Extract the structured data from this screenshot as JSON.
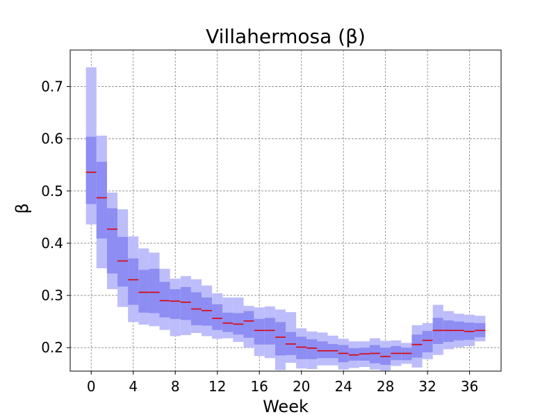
{
  "chart_data": {
    "type": "box",
    "title": "Villahermosa (β)",
    "xlabel": "Week",
    "ylabel": "β",
    "xlim": [
      -2,
      39
    ],
    "ylim": [
      0.155,
      0.77
    ],
    "xticks": [
      0,
      4,
      8,
      12,
      16,
      20,
      24,
      28,
      32,
      36
    ],
    "yticks": [
      0.2,
      0.3,
      0.4,
      0.5,
      0.6,
      0.7
    ],
    "grid": true,
    "colors": {
      "outer_band": "#bdbdfb",
      "inner_band": "#8d8df3",
      "median": "#e00000",
      "grid": "#808080"
    },
    "points": [
      {
        "x": 0,
        "outer_low": 0.436,
        "inner_low": 0.475,
        "median": 0.536,
        "inner_high": 0.604,
        "outer_high": 0.737
      },
      {
        "x": 1,
        "outer_low": 0.352,
        "inner_low": 0.409,
        "median": 0.487,
        "inner_high": 0.556,
        "outer_high": 0.606
      },
      {
        "x": 2,
        "outer_low": 0.312,
        "inner_low": 0.342,
        "median": 0.427,
        "inner_high": 0.467,
        "outer_high": 0.497
      },
      {
        "x": 3,
        "outer_low": 0.278,
        "inner_low": 0.317,
        "median": 0.366,
        "inner_high": 0.412,
        "outer_high": 0.465
      },
      {
        "x": 4,
        "outer_low": 0.249,
        "inner_low": 0.282,
        "median": 0.33,
        "inner_high": 0.371,
        "outer_high": 0.413
      },
      {
        "x": 5,
        "outer_low": 0.244,
        "inner_low": 0.267,
        "median": 0.306,
        "inner_high": 0.349,
        "outer_high": 0.39
      },
      {
        "x": 6,
        "outer_low": 0.241,
        "inner_low": 0.266,
        "median": 0.306,
        "inner_high": 0.351,
        "outer_high": 0.382
      },
      {
        "x": 7,
        "outer_low": 0.234,
        "inner_low": 0.258,
        "median": 0.29,
        "inner_high": 0.326,
        "outer_high": 0.351
      },
      {
        "x": 8,
        "outer_low": 0.222,
        "inner_low": 0.255,
        "median": 0.289,
        "inner_high": 0.312,
        "outer_high": 0.332
      },
      {
        "x": 9,
        "outer_low": 0.224,
        "inner_low": 0.253,
        "median": 0.287,
        "inner_high": 0.316,
        "outer_high": 0.337
      },
      {
        "x": 10,
        "outer_low": 0.228,
        "inner_low": 0.243,
        "median": 0.274,
        "inner_high": 0.306,
        "outer_high": 0.331
      },
      {
        "x": 11,
        "outer_low": 0.222,
        "inner_low": 0.242,
        "median": 0.271,
        "inner_high": 0.296,
        "outer_high": 0.319
      },
      {
        "x": 12,
        "outer_low": 0.217,
        "inner_low": 0.234,
        "median": 0.256,
        "inner_high": 0.283,
        "outer_high": 0.304
      },
      {
        "x": 13,
        "outer_low": 0.218,
        "inner_low": 0.23,
        "median": 0.247,
        "inner_high": 0.267,
        "outer_high": 0.296
      },
      {
        "x": 14,
        "outer_low": 0.211,
        "inner_low": 0.225,
        "median": 0.245,
        "inner_high": 0.266,
        "outer_high": 0.296
      },
      {
        "x": 15,
        "outer_low": 0.2,
        "inner_low": 0.219,
        "median": 0.251,
        "inner_high": 0.27,
        "outer_high": 0.28
      },
      {
        "x": 16,
        "outer_low": 0.184,
        "inner_low": 0.206,
        "median": 0.233,
        "inner_high": 0.255,
        "outer_high": 0.277
      },
      {
        "x": 17,
        "outer_low": 0.18,
        "inner_low": 0.206,
        "median": 0.233,
        "inner_high": 0.257,
        "outer_high": 0.279
      },
      {
        "x": 18,
        "outer_low": 0.157,
        "inner_low": 0.185,
        "median": 0.22,
        "inner_high": 0.249,
        "outer_high": 0.273
      },
      {
        "x": 19,
        "outer_low": 0.171,
        "inner_low": 0.186,
        "median": 0.207,
        "inner_high": 0.23,
        "outer_high": 0.268
      },
      {
        "x": 20,
        "outer_low": 0.16,
        "inner_low": 0.178,
        "median": 0.201,
        "inner_high": 0.221,
        "outer_high": 0.237
      },
      {
        "x": 21,
        "outer_low": 0.159,
        "inner_low": 0.178,
        "median": 0.199,
        "inner_high": 0.216,
        "outer_high": 0.231
      },
      {
        "x": 22,
        "outer_low": 0.166,
        "inner_low": 0.18,
        "median": 0.194,
        "inner_high": 0.212,
        "outer_high": 0.229
      },
      {
        "x": 23,
        "outer_low": 0.166,
        "inner_low": 0.18,
        "median": 0.194,
        "inner_high": 0.207,
        "outer_high": 0.223
      },
      {
        "x": 24,
        "outer_low": 0.158,
        "inner_low": 0.172,
        "median": 0.189,
        "inner_high": 0.205,
        "outer_high": 0.217
      },
      {
        "x": 25,
        "outer_low": 0.161,
        "inner_low": 0.175,
        "median": 0.186,
        "inner_high": 0.199,
        "outer_high": 0.212
      },
      {
        "x": 26,
        "outer_low": 0.163,
        "inner_low": 0.175,
        "median": 0.188,
        "inner_high": 0.2,
        "outer_high": 0.212
      },
      {
        "x": 27,
        "outer_low": 0.158,
        "inner_low": 0.17,
        "median": 0.189,
        "inner_high": 0.205,
        "outer_high": 0.218
      },
      {
        "x": 28,
        "outer_low": 0.156,
        "inner_low": 0.167,
        "median": 0.183,
        "inner_high": 0.2,
        "outer_high": 0.213
      },
      {
        "x": 29,
        "outer_low": 0.165,
        "inner_low": 0.176,
        "median": 0.189,
        "inner_high": 0.203,
        "outer_high": 0.214
      },
      {
        "x": 30,
        "outer_low": 0.169,
        "inner_low": 0.176,
        "median": 0.189,
        "inner_high": 0.2,
        "outer_high": 0.209
      },
      {
        "x": 31,
        "outer_low": 0.162,
        "inner_low": 0.181,
        "median": 0.206,
        "inner_high": 0.225,
        "outer_high": 0.243
      },
      {
        "x": 32,
        "outer_low": 0.178,
        "inner_low": 0.191,
        "median": 0.214,
        "inner_high": 0.232,
        "outer_high": 0.247
      },
      {
        "x": 33,
        "outer_low": 0.186,
        "inner_low": 0.207,
        "median": 0.233,
        "inner_high": 0.257,
        "outer_high": 0.282
      },
      {
        "x": 34,
        "outer_low": 0.197,
        "inner_low": 0.211,
        "median": 0.233,
        "inner_high": 0.252,
        "outer_high": 0.27
      },
      {
        "x": 35,
        "outer_low": 0.201,
        "inner_low": 0.214,
        "median": 0.233,
        "inner_high": 0.25,
        "outer_high": 0.265
      },
      {
        "x": 36,
        "outer_low": 0.203,
        "inner_low": 0.215,
        "median": 0.231,
        "inner_high": 0.248,
        "outer_high": 0.263
      },
      {
        "x": 37,
        "outer_low": 0.212,
        "inner_low": 0.22,
        "median": 0.233,
        "inner_high": 0.247,
        "outer_high": 0.261
      }
    ]
  }
}
